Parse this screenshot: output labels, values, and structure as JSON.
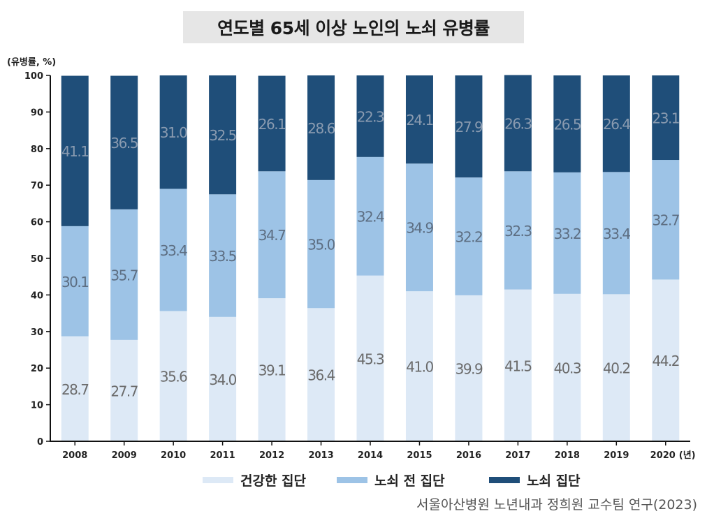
{
  "title": "연도별 65세 이상 노인의 노쇠 유병률",
  "source": "서울아산병원 노년내과 정희원 교수팀 연구(2023)",
  "chart_data": {
    "type": "bar",
    "stacked": true,
    "title": "연도별 65세 이상 노인의 노쇠 유병률",
    "ylabel": "(유병률, %)",
    "xunit": "(년)",
    "ylim": [
      0,
      100
    ],
    "yticks": [
      0,
      10,
      20,
      30,
      40,
      50,
      60,
      70,
      80,
      90,
      100
    ],
    "categories": [
      "2008",
      "2009",
      "2010",
      "2011",
      "2012",
      "2013",
      "2014",
      "2015",
      "2016",
      "2017",
      "2018",
      "2019",
      "2020"
    ],
    "series": [
      {
        "name": "건강한 집단",
        "color": "#dde9f6",
        "labelColor": "#6b6b6b",
        "values": [
          28.7,
          27.7,
          35.6,
          34.0,
          39.1,
          36.4,
          45.3,
          41.0,
          39.9,
          41.5,
          40.3,
          40.2,
          44.2
        ],
        "labels": [
          "28.7",
          "27.7",
          "35.6",
          "34.0",
          "39.1",
          "36.4",
          "45.3",
          "41.0",
          "39.9",
          "41.5",
          "40.3",
          "40.2",
          "44.2"
        ]
      },
      {
        "name": "노쇠 전 집단",
        "color": "#9dc3e6",
        "labelColor": "#5d6e82",
        "values": [
          30.1,
          35.7,
          33.4,
          33.5,
          34.7,
          35.0,
          32.4,
          34.9,
          32.2,
          32.3,
          33.2,
          33.4,
          32.7
        ],
        "labels": [
          "30.1",
          "35.7",
          "33.4",
          "33.5",
          "34.7",
          "35.0",
          "32.4",
          "34.9",
          "32.2",
          "32.3",
          "33.2",
          "33.4",
          "32.7"
        ]
      },
      {
        "name": "노쇠 집단",
        "color": "#1f4e79",
        "labelColor": "#8a9bb0",
        "values": [
          41.1,
          36.5,
          31.0,
          32.5,
          26.1,
          28.6,
          22.3,
          24.1,
          27.9,
          26.3,
          26.5,
          26.4,
          23.1
        ],
        "labels": [
          "41.1",
          "36.5",
          "31.0",
          "32.5",
          "26.1",
          "28.6",
          "22.3",
          "24.1",
          "27.9",
          "26.3",
          "26.5",
          "26.4",
          "23.1"
        ]
      }
    ],
    "legend": "bottom-center",
    "grid": false
  }
}
